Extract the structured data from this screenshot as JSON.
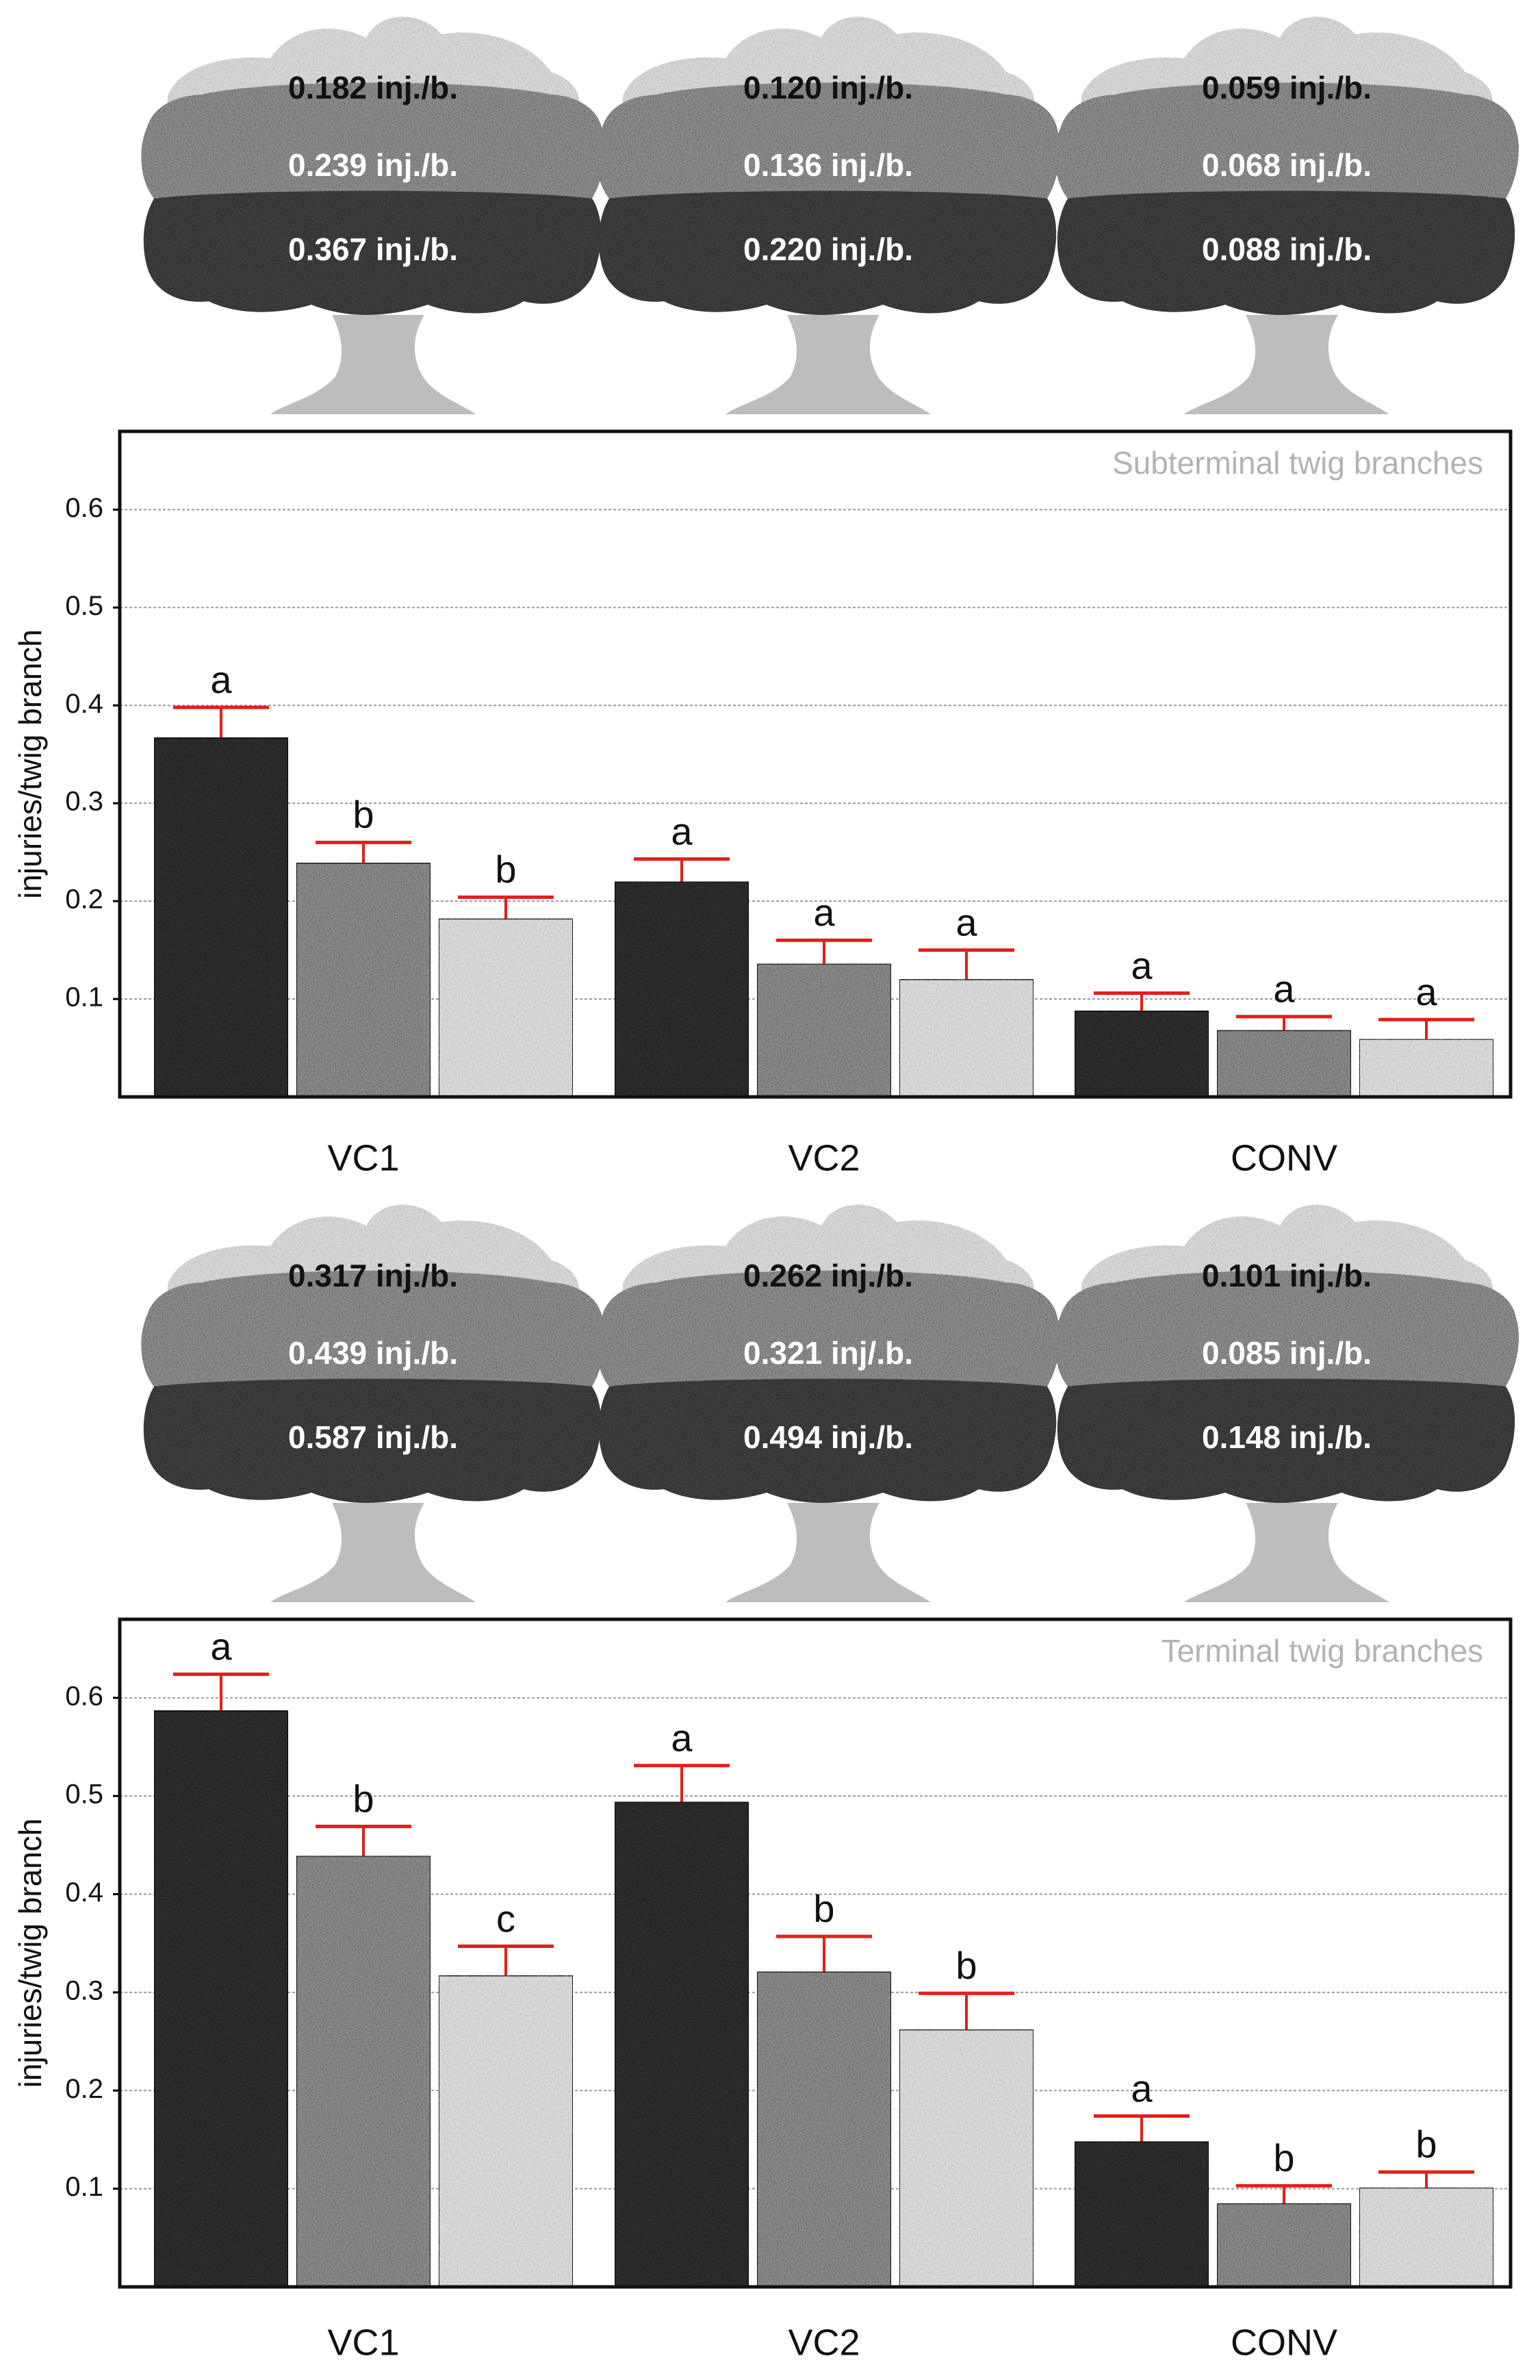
{
  "chart_data": [
    {
      "type": "bar",
      "title": "Subterminal twig branches",
      "ylabel": "injuries/twig branch",
      "xlabel": "",
      "ylim": [
        0,
        0.68
      ],
      "yticks": [
        0.1,
        0.2,
        0.3,
        0.4,
        0.5,
        0.6
      ],
      "grid": true,
      "categories": [
        "VC1",
        "VC2",
        "CONV"
      ],
      "series": [
        {
          "fill": "dark",
          "color": "#2e2e2e",
          "values": [
            0.367,
            0.22,
            0.088
          ],
          "errors": [
            0.031,
            0.023,
            0.018
          ],
          "letters": [
            "a",
            "a",
            "a"
          ]
        },
        {
          "fill": "mid",
          "color": "#8a8a8a",
          "values": [
            0.239,
            0.136,
            0.068
          ],
          "errors": [
            0.021,
            0.024,
            0.014
          ],
          "letters": [
            "b",
            "a",
            "a"
          ]
        },
        {
          "fill": "light",
          "color": "#d9d9d9",
          "values": [
            0.182,
            0.12,
            0.059
          ],
          "errors": [
            0.022,
            0.03,
            0.02
          ],
          "letters": [
            "b",
            "a",
            "a"
          ]
        }
      ],
      "tree_labels": [
        [
          "0.182 inj./b.",
          "0.239 inj./b.",
          "0.367 inj./b."
        ],
        [
          "0.120 inj./b.",
          "0.136 inj./b.",
          "0.220 inj./b."
        ],
        [
          "0.059 inj./b.",
          "0.068 inj./b.",
          "0.088 inj./b."
        ]
      ]
    },
    {
      "type": "bar",
      "title": "Terminal twig branches",
      "ylabel": "injuries/twig branch",
      "xlabel": "",
      "ylim": [
        0,
        0.68
      ],
      "yticks": [
        0.1,
        0.2,
        0.3,
        0.4,
        0.5,
        0.6
      ],
      "grid": true,
      "categories": [
        "VC1",
        "VC2",
        "CONV"
      ],
      "series": [
        {
          "fill": "dark",
          "color": "#2e2e2e",
          "values": [
            0.587,
            0.494,
            0.148
          ],
          "errors": [
            0.037,
            0.037,
            0.026
          ],
          "letters": [
            "a",
            "a",
            "a"
          ]
        },
        {
          "fill": "mid",
          "color": "#8a8a8a",
          "values": [
            0.439,
            0.321,
            0.085
          ],
          "errors": [
            0.03,
            0.036,
            0.018
          ],
          "letters": [
            "b",
            "b",
            "b"
          ]
        },
        {
          "fill": "light",
          "color": "#d9d9d9",
          "values": [
            0.317,
            0.262,
            0.101
          ],
          "errors": [
            0.03,
            0.037,
            0.016
          ],
          "letters": [
            "c",
            "b",
            "b"
          ]
        }
      ],
      "tree_labels": [
        [
          "0.317 inj./b.",
          "0.439 inj./b.",
          "0.587 inj./b."
        ],
        [
          "0.262 inj./b.",
          "0.321 inj/.b.",
          "0.494 inj./b."
        ],
        [
          "0.101 inj./b.",
          "0.085 inj./b.",
          "0.148 inj./b."
        ]
      ]
    }
  ],
  "colors": {
    "error_bar": "#e0201b",
    "grid": "#9a9a9a",
    "title": "#b3b3b3",
    "tree_top": "#d6d6d6",
    "tree_mid": "#8c8c8c",
    "tree_bottom": "#3c3c3c",
    "tree_trunk": "#bdbdbd"
  }
}
